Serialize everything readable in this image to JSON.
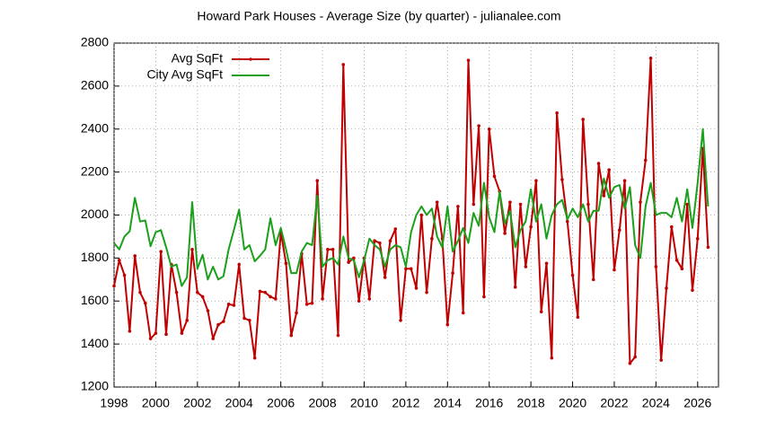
{
  "chart_data": {
    "type": "line",
    "title": "Howard Park Houses - Average Size (by quarter) - julianalee.com",
    "x": [
      1998,
      1998.25,
      1998.5,
      1998.75,
      1999,
      1999.25,
      1999.5,
      1999.75,
      2000,
      2000.25,
      2000.5,
      2000.75,
      2001,
      2001.25,
      2001.5,
      2001.75,
      2002,
      2002.25,
      2002.5,
      2002.75,
      2003,
      2003.25,
      2003.5,
      2003.75,
      2004,
      2004.25,
      2004.5,
      2004.75,
      2005,
      2005.25,
      2005.5,
      2005.75,
      2006,
      2006.25,
      2006.5,
      2006.75,
      2007,
      2007.25,
      2007.5,
      2007.75,
      2008,
      2008.25,
      2008.5,
      2008.75,
      2009,
      2009.25,
      2009.5,
      2009.75,
      2010,
      2010.25,
      2010.5,
      2010.75,
      2011,
      2011.25,
      2011.5,
      2011.75,
      2012,
      2012.25,
      2012.5,
      2012.75,
      2013,
      2013.25,
      2013.5,
      2013.75,
      2014,
      2014.25,
      2014.5,
      2014.75,
      2015,
      2015.25,
      2015.5,
      2015.75,
      2016,
      2016.25,
      2016.5,
      2016.75,
      2017,
      2017.25,
      2017.5,
      2017.75,
      2018,
      2018.25,
      2018.5,
      2018.75,
      2019,
      2019.25,
      2019.5,
      2019.75,
      2020,
      2020.25,
      2020.5,
      2020.75,
      2021,
      2021.25,
      2021.5,
      2021.75,
      2022,
      2022.25,
      2022.5,
      2022.75,
      2023,
      2023.25,
      2023.5,
      2023.75,
      2024,
      2024.25,
      2024.5,
      2024.75,
      2025,
      2025.25,
      2025.5,
      2025.75,
      2026,
      2026.25,
      2026.5
    ],
    "series": [
      {
        "name": "Avg SqFt",
        "color": "#c00000",
        "markers": true,
        "values": [
          1670,
          1790,
          1720,
          1460,
          1810,
          1640,
          1590,
          1425,
          1450,
          1830,
          1445,
          1770,
          1640,
          1450,
          1510,
          1840,
          1640,
          1620,
          1555,
          1425,
          1490,
          1505,
          1585,
          1580,
          1770,
          1520,
          1510,
          1335,
          1645,
          1640,
          1620,
          1610,
          1920,
          1775,
          1440,
          1545,
          1820,
          1585,
          1590,
          2160,
          1610,
          1840,
          1840,
          1440,
          2700,
          1780,
          1800,
          1600,
          1800,
          1610,
          1880,
          1870,
          1710,
          1880,
          1935,
          1510,
          1750,
          1750,
          1660,
          2000,
          1640,
          1890,
          2060,
          1890,
          1490,
          1730,
          2040,
          1545,
          2720,
          2050,
          2415,
          1620,
          2400,
          2180,
          2110,
          1915,
          2060,
          1665,
          2050,
          1760,
          1945,
          2160,
          1550,
          1775,
          1335,
          2475,
          2165,
          1970,
          1720,
          1525,
          2445,
          2050,
          1700,
          2240,
          2090,
          2210,
          1745,
          1930,
          2160,
          1310,
          1340,
          2060,
          2255,
          2730,
          1760,
          1325,
          1660,
          1945,
          1790,
          1750,
          2050,
          1650,
          1890,
          2310,
          1850
        ]
      },
      {
        "name": "City Avg SqFt",
        "color": "#1aa01a",
        "markers": false,
        "values": [
          1870,
          1840,
          1900,
          1925,
          2080,
          1970,
          1975,
          1855,
          1920,
          1930,
          1850,
          1760,
          1770,
          1670,
          1710,
          2060,
          1750,
          1815,
          1700,
          1760,
          1700,
          1715,
          1840,
          1930,
          2025,
          1840,
          1860,
          1785,
          1810,
          1840,
          1985,
          1860,
          1940,
          1840,
          1730,
          1730,
          1830,
          1870,
          1860,
          2090,
          1760,
          1790,
          1800,
          1770,
          1900,
          1800,
          1790,
          1710,
          1790,
          1890,
          1860,
          1840,
          1760,
          1840,
          1860,
          1850,
          1760,
          1920,
          2000,
          2040,
          2000,
          2030,
          1900,
          1850,
          2040,
          1830,
          1880,
          1940,
          1870,
          2010,
          1950,
          2150,
          1990,
          1920,
          2110,
          1960,
          2020,
          1850,
          1930,
          1970,
          2120,
          1970,
          2050,
          1890,
          2000,
          2050,
          2070,
          1980,
          2030,
          1990,
          2050,
          1970,
          2020,
          2020,
          2170,
          2080,
          2130,
          2140,
          2030,
          2130,
          1860,
          1800,
          2040,
          2150,
          2000,
          2010,
          2010,
          1990,
          2080,
          1970,
          2120,
          1940,
          2150,
          2400,
          2040
        ]
      }
    ],
    "xlim": [
      1998,
      2027
    ],
    "xticks": [
      1998,
      2000,
      2002,
      2004,
      2006,
      2008,
      2010,
      2012,
      2014,
      2016,
      2018,
      2020,
      2022,
      2024,
      2026
    ],
    "ylim": [
      1200,
      2800
    ],
    "yticks": [
      1200,
      1400,
      1600,
      1800,
      2000,
      2200,
      2400,
      2600,
      2800
    ],
    "grid": true,
    "legend": "top-left"
  }
}
